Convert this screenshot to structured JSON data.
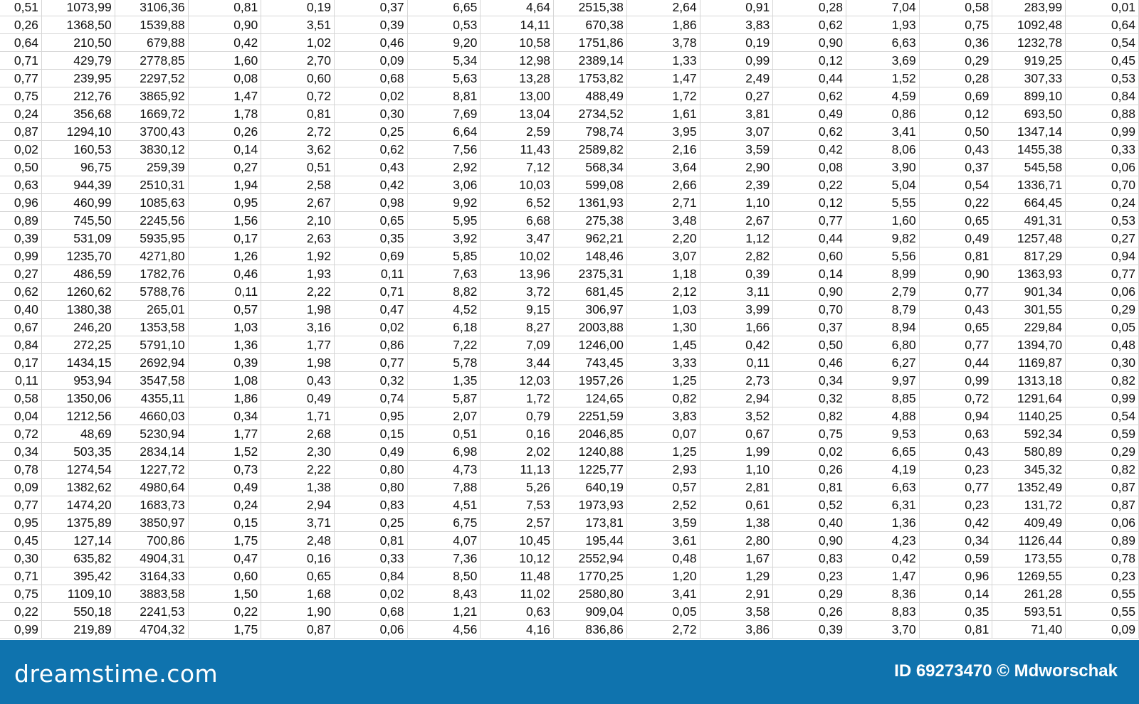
{
  "sheet": {
    "rows": [
      [
        "0,51",
        "1073,99",
        "3106,36",
        "0,81",
        "0,19",
        "0,37",
        "6,65",
        "4,64",
        "2515,38",
        "2,64",
        "0,91",
        "0,28",
        "7,04",
        "0,58",
        "283,99",
        "0,01"
      ],
      [
        "0,26",
        "1368,50",
        "1539,88",
        "0,90",
        "3,51",
        "0,39",
        "0,53",
        "14,11",
        "670,38",
        "1,86",
        "3,83",
        "0,62",
        "1,93",
        "0,75",
        "1092,48",
        "0,64"
      ],
      [
        "0,64",
        "210,50",
        "679,88",
        "0,42",
        "1,02",
        "0,46",
        "9,20",
        "10,58",
        "1751,86",
        "3,78",
        "0,19",
        "0,90",
        "6,63",
        "0,36",
        "1232,78",
        "0,54"
      ],
      [
        "0,71",
        "429,79",
        "2778,85",
        "1,60",
        "2,70",
        "0,09",
        "5,34",
        "12,98",
        "2389,14",
        "1,33",
        "0,99",
        "0,12",
        "3,69",
        "0,29",
        "919,25",
        "0,45"
      ],
      [
        "0,77",
        "239,95",
        "2297,52",
        "0,08",
        "0,60",
        "0,68",
        "5,63",
        "13,28",
        "1753,82",
        "1,47",
        "2,49",
        "0,44",
        "1,52",
        "0,28",
        "307,33",
        "0,53"
      ],
      [
        "0,75",
        "212,76",
        "3865,92",
        "1,47",
        "0,72",
        "0,02",
        "8,81",
        "13,00",
        "488,49",
        "1,72",
        "0,27",
        "0,62",
        "4,59",
        "0,69",
        "899,10",
        "0,84"
      ],
      [
        "0,24",
        "356,68",
        "1669,72",
        "1,78",
        "0,81",
        "0,30",
        "7,69",
        "13,04",
        "2734,52",
        "1,61",
        "3,81",
        "0,49",
        "0,86",
        "0,12",
        "693,50",
        "0,88"
      ],
      [
        "0,87",
        "1294,10",
        "3700,43",
        "0,26",
        "2,72",
        "0,25",
        "6,64",
        "2,59",
        "798,74",
        "3,95",
        "3,07",
        "0,62",
        "3,41",
        "0,50",
        "1347,14",
        "0,99"
      ],
      [
        "0,02",
        "160,53",
        "3830,12",
        "0,14",
        "3,62",
        "0,62",
        "7,56",
        "11,43",
        "2589,82",
        "2,16",
        "3,59",
        "0,42",
        "8,06",
        "0,43",
        "1455,38",
        "0,33"
      ],
      [
        "0,50",
        "96,75",
        "259,39",
        "0,27",
        "0,51",
        "0,43",
        "2,92",
        "7,12",
        "568,34",
        "3,64",
        "2,90",
        "0,08",
        "3,90",
        "0,37",
        "545,58",
        "0,06"
      ],
      [
        "0,63",
        "944,39",
        "2510,31",
        "1,94",
        "2,58",
        "0,42",
        "3,06",
        "10,03",
        "599,08",
        "2,66",
        "2,39",
        "0,22",
        "5,04",
        "0,54",
        "1336,71",
        "0,70"
      ],
      [
        "0,96",
        "460,99",
        "1085,63",
        "0,95",
        "2,67",
        "0,98",
        "9,92",
        "6,52",
        "1361,93",
        "2,71",
        "1,10",
        "0,12",
        "5,55",
        "0,22",
        "664,45",
        "0,24"
      ],
      [
        "0,89",
        "745,50",
        "2245,56",
        "1,56",
        "2,10",
        "0,65",
        "5,95",
        "6,68",
        "275,38",
        "3,48",
        "2,67",
        "0,77",
        "1,60",
        "0,65",
        "491,31",
        "0,53"
      ],
      [
        "0,39",
        "531,09",
        "5935,95",
        "0,17",
        "2,63",
        "0,35",
        "3,92",
        "3,47",
        "962,21",
        "2,20",
        "1,12",
        "0,44",
        "9,82",
        "0,49",
        "1257,48",
        "0,27"
      ],
      [
        "0,99",
        "1235,70",
        "4271,80",
        "1,26",
        "1,92",
        "0,69",
        "5,85",
        "10,02",
        "148,46",
        "3,07",
        "2,82",
        "0,60",
        "5,56",
        "0,81",
        "817,29",
        "0,94"
      ],
      [
        "0,27",
        "486,59",
        "1782,76",
        "0,46",
        "1,93",
        "0,11",
        "7,63",
        "13,96",
        "2375,31",
        "1,18",
        "0,39",
        "0,14",
        "8,99",
        "0,90",
        "1363,93",
        "0,77"
      ],
      [
        "0,62",
        "1260,62",
        "5788,76",
        "0,11",
        "2,22",
        "0,71",
        "8,82",
        "3,72",
        "681,45",
        "2,12",
        "3,11",
        "0,90",
        "2,79",
        "0,77",
        "901,34",
        "0,06"
      ],
      [
        "0,40",
        "1380,38",
        "265,01",
        "0,57",
        "1,98",
        "0,47",
        "4,52",
        "9,15",
        "306,97",
        "1,03",
        "3,99",
        "0,70",
        "8,79",
        "0,43",
        "301,55",
        "0,29"
      ],
      [
        "0,67",
        "246,20",
        "1353,58",
        "1,03",
        "3,16",
        "0,02",
        "6,18",
        "8,27",
        "2003,88",
        "1,30",
        "1,66",
        "0,37",
        "8,94",
        "0,65",
        "229,84",
        "0,05"
      ],
      [
        "0,84",
        "272,25",
        "5791,10",
        "1,36",
        "1,77",
        "0,86",
        "7,22",
        "7,09",
        "1246,00",
        "1,45",
        "0,42",
        "0,50",
        "6,80",
        "0,77",
        "1394,70",
        "0,48"
      ],
      [
        "0,17",
        "1434,15",
        "2692,94",
        "0,39",
        "1,98",
        "0,77",
        "5,78",
        "3,44",
        "743,45",
        "3,33",
        "0,11",
        "0,46",
        "6,27",
        "0,44",
        "1169,87",
        "0,30"
      ],
      [
        "0,11",
        "953,94",
        "3547,58",
        "1,08",
        "0,43",
        "0,32",
        "1,35",
        "12,03",
        "1957,26",
        "1,25",
        "2,73",
        "0,34",
        "9,97",
        "0,99",
        "1313,18",
        "0,82"
      ],
      [
        "0,58",
        "1350,06",
        "4355,11",
        "1,86",
        "0,49",
        "0,74",
        "5,87",
        "1,72",
        "124,65",
        "0,82",
        "2,94",
        "0,32",
        "8,85",
        "0,72",
        "1291,64",
        "0,99"
      ],
      [
        "0,04",
        "1212,56",
        "4660,03",
        "0,34",
        "1,71",
        "0,95",
        "2,07",
        "0,79",
        "2251,59",
        "3,83",
        "3,52",
        "0,82",
        "4,88",
        "0,94",
        "1140,25",
        "0,54"
      ],
      [
        "0,72",
        "48,69",
        "5230,94",
        "1,77",
        "2,68",
        "0,15",
        "0,51",
        "0,16",
        "2046,85",
        "0,07",
        "0,67",
        "0,75",
        "9,53",
        "0,63",
        "592,34",
        "0,59"
      ],
      [
        "0,34",
        "503,35",
        "2834,14",
        "1,52",
        "2,30",
        "0,49",
        "6,98",
        "2,02",
        "1240,88",
        "1,25",
        "1,99",
        "0,02",
        "6,65",
        "0,43",
        "580,89",
        "0,29"
      ],
      [
        "0,78",
        "1274,54",
        "1227,72",
        "0,73",
        "2,22",
        "0,80",
        "4,73",
        "11,13",
        "1225,77",
        "2,93",
        "1,10",
        "0,26",
        "4,19",
        "0,23",
        "345,32",
        "0,82"
      ],
      [
        "0,09",
        "1382,62",
        "4980,64",
        "0,49",
        "1,38",
        "0,80",
        "7,88",
        "5,26",
        "640,19",
        "0,57",
        "2,81",
        "0,81",
        "6,63",
        "0,77",
        "1352,49",
        "0,87"
      ],
      [
        "0,77",
        "1474,20",
        "1683,73",
        "0,24",
        "2,94",
        "0,83",
        "4,51",
        "7,53",
        "1973,93",
        "2,52",
        "0,61",
        "0,52",
        "6,31",
        "0,23",
        "131,72",
        "0,87"
      ],
      [
        "0,95",
        "1375,89",
        "3850,97",
        "0,15",
        "3,71",
        "0,25",
        "6,75",
        "2,57",
        "173,81",
        "3,59",
        "1,38",
        "0,40",
        "1,36",
        "0,42",
        "409,49",
        "0,06"
      ],
      [
        "0,45",
        "127,14",
        "700,86",
        "1,75",
        "2,48",
        "0,81",
        "4,07",
        "10,45",
        "195,44",
        "3,61",
        "2,80",
        "0,90",
        "4,23",
        "0,34",
        "1126,44",
        "0,89"
      ],
      [
        "0,30",
        "635,82",
        "4904,31",
        "0,47",
        "0,16",
        "0,33",
        "7,36",
        "10,12",
        "2552,94",
        "0,48",
        "1,67",
        "0,83",
        "0,42",
        "0,59",
        "173,55",
        "0,78"
      ],
      [
        "0,71",
        "395,42",
        "3164,33",
        "0,60",
        "0,65",
        "0,84",
        "8,50",
        "11,48",
        "1770,25",
        "1,20",
        "1,29",
        "0,23",
        "1,47",
        "0,96",
        "1269,55",
        "0,23"
      ],
      [
        "0,75",
        "1109,10",
        "3883,58",
        "1,50",
        "1,68",
        "0,02",
        "8,43",
        "11,02",
        "2580,80",
        "3,41",
        "2,91",
        "0,29",
        "8,36",
        "0,14",
        "261,28",
        "0,55"
      ],
      [
        "0,22",
        "550,18",
        "2241,53",
        "0,22",
        "1,90",
        "0,68",
        "1,21",
        "0,63",
        "909,04",
        "0,05",
        "3,58",
        "0,26",
        "8,83",
        "0,35",
        "593,51",
        "0,55"
      ],
      [
        "0,99",
        "219,89",
        "4704,32",
        "1,75",
        "0,87",
        "0,06",
        "4,56",
        "4,16",
        "836,86",
        "2,72",
        "3,86",
        "0,39",
        "3,70",
        "0,81",
        "71,40",
        "0,09"
      ]
    ]
  },
  "footer": {
    "logo": "dreamstime.com",
    "credit": "ID 69273470 © Mdworschak",
    "background_color": "#0f73ae"
  }
}
